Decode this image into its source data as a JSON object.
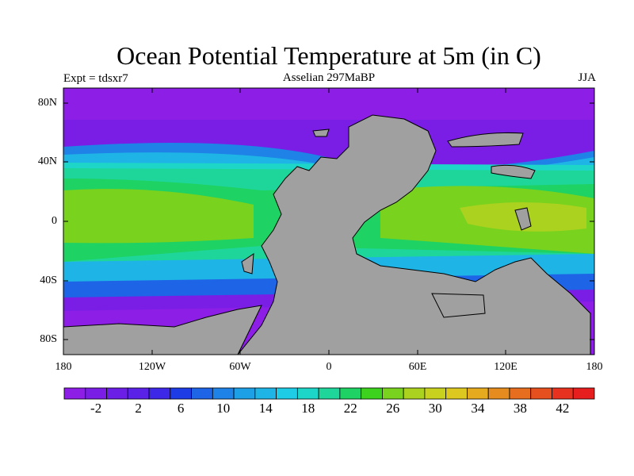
{
  "title": "Ocean Potential Temperature at 5m (in C)",
  "experiment": "Expt = tdsxr7",
  "subtitle": "Asselian 297MaBP",
  "season": "JJA",
  "axes": {
    "lat_ticks": [
      "80N",
      "40N",
      "0",
      "40S",
      "80S"
    ],
    "lon_ticks": [
      "180",
      "120W",
      "60W",
      "0",
      "60E",
      "120E",
      "180"
    ]
  },
  "colorbar": {
    "labels": [
      "-2",
      "2",
      "6",
      "10",
      "14",
      "18",
      "22",
      "26",
      "30",
      "34",
      "38",
      "42"
    ],
    "colors": [
      "#8C1EE6",
      "#7A1EE6",
      "#6A1EE6",
      "#5A22E6",
      "#3C28E6",
      "#1E3CE6",
      "#1E64E6",
      "#1E82E6",
      "#1EA0E6",
      "#1EB4E6",
      "#1ECCE6",
      "#1ED6C8",
      "#1ED69A",
      "#1ED264",
      "#3CD21E",
      "#78D21E",
      "#AAD21E",
      "#C8D21E",
      "#DCC81E",
      "#E6AA1E",
      "#E68C1E",
      "#E66E1E",
      "#E6501E",
      "#E6321E",
      "#E61E1E"
    ]
  },
  "map_colors": {
    "land": "#A0A0A0",
    "coast": "#000000"
  }
}
